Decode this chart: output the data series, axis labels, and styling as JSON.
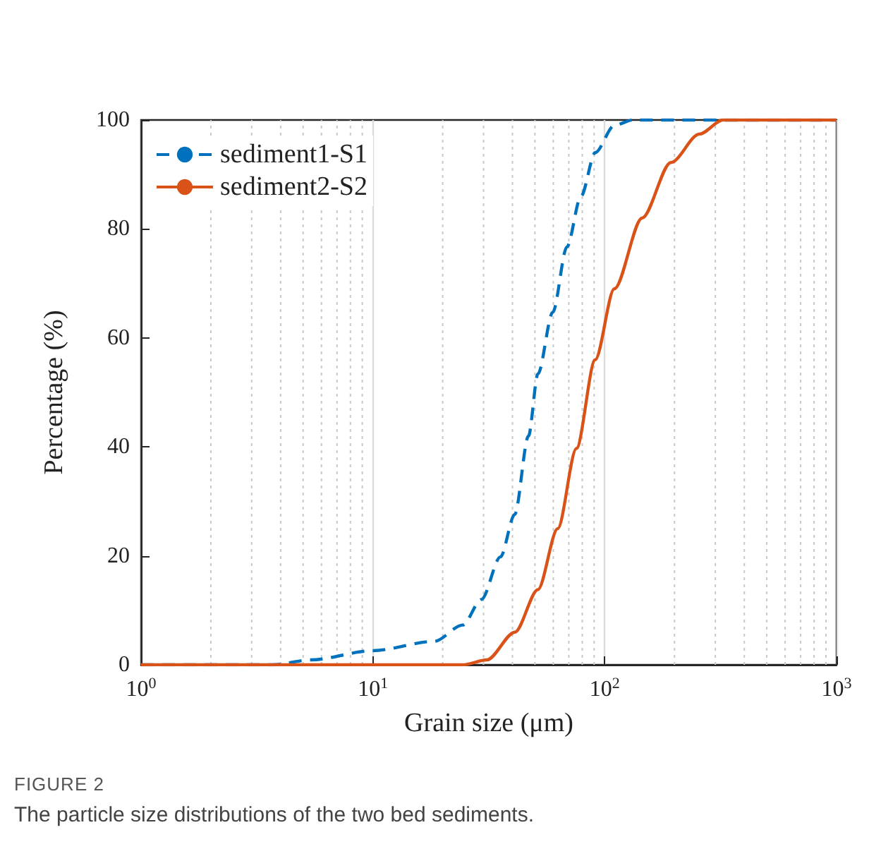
{
  "chart_data": {
    "type": "line",
    "xlabel": "Grain size (μm)",
    "ylabel": "Percentage (%)",
    "log": "x",
    "grid": "x",
    "legend": "top left",
    "marker": "none",
    "xlim": [
      1,
      1000
    ],
    "xticks": [
      {
        "value": 1,
        "label": "10$^{0}$"
      },
      {
        "value": 10,
        "label": "10$^{1}$"
      },
      {
        "value": 100,
        "label": "10$^{2}$"
      },
      {
        "value": 1000,
        "label": "10$^{3}$"
      }
    ],
    "ylim": [
      0,
      100
    ],
    "yticks": [
      0,
      20,
      40,
      60,
      80,
      100
    ],
    "series": [
      {
        "name": "sediment1-S1",
        "color": "#0072bd",
        "line_style": "dashed",
        "x": [
          1,
          3.7,
          5.4,
          10,
          18.4,
          24.4,
          29.4,
          35.5,
          40.9,
          46.9,
          51.5,
          59.7,
          68.7,
          79,
          91,
          110,
          132,
          1000
        ],
        "values": [
          0,
          0,
          0.9,
          2.6,
          4.3,
          7.3,
          12,
          19.8,
          27.6,
          42,
          53.4,
          64.7,
          76.7,
          86,
          94,
          99,
          100,
          100
        ]
      },
      {
        "name": "sediment2-S2",
        "color": "#d95319",
        "line_style": "solid",
        "x": [
          1,
          24.4,
          31,
          41,
          51.5,
          62.7,
          75.5,
          91,
          110,
          145,
          193,
          256,
          324,
          1000
        ],
        "values": [
          0,
          0,
          0.9,
          6,
          13.8,
          25,
          39.7,
          56,
          69,
          82,
          92.2,
          97.4,
          100,
          100
        ]
      }
    ],
    "annotations": [
      "FIGURE 2",
      "The particle size distributions of the two bed sediments."
    ]
  }
}
